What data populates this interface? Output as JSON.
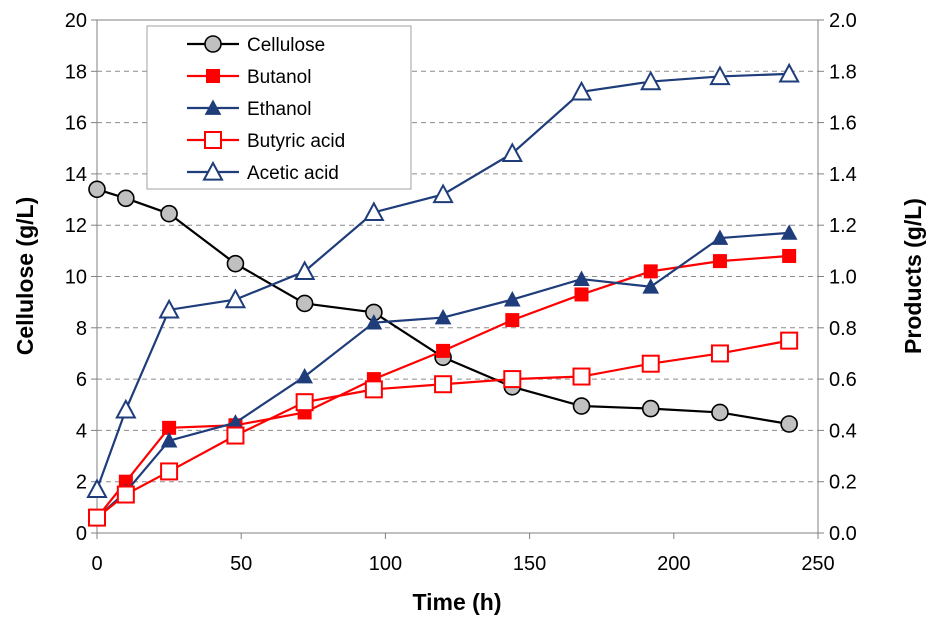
{
  "chart_data": {
    "type": "line",
    "title": "",
    "xlabel": "Time (h)",
    "ylabel": "Cellulose (g/L)",
    "y2label": "Products (g/L)",
    "xlim": [
      0,
      250
    ],
    "ylim": [
      0,
      20
    ],
    "y2lim": [
      0,
      2.0
    ],
    "xticks": [
      "0",
      "50",
      "100",
      "150",
      "200",
      "250"
    ],
    "yticks": [
      "0",
      "2",
      "4",
      "6",
      "8",
      "10",
      "12",
      "14",
      "16",
      "18",
      "20"
    ],
    "y2ticks": [
      "0.0",
      "0.2",
      "0.4",
      "0.6",
      "0.8",
      "1.0",
      "1.2",
      "1.4",
      "1.6",
      "1.8",
      "2.0"
    ],
    "grid": "horizontal dashed",
    "legend_position": "top-left",
    "series": [
      {
        "name": "Cellulose",
        "axis": "left",
        "color": "#000000",
        "marker": "circle",
        "marker_fill": "#c0c0c0",
        "x": [
          0,
          10,
          25,
          48,
          72,
          96,
          120,
          144,
          168,
          192,
          216,
          240
        ],
        "y": [
          13.4,
          13.05,
          12.45,
          10.5,
          8.95,
          8.6,
          6.85,
          5.7,
          4.95,
          4.85,
          4.7,
          4.25
        ]
      },
      {
        "name": "Butanol",
        "axis": "right",
        "color": "#ff0000",
        "marker": "square",
        "marker_fill": "#ff0000",
        "x": [
          0,
          10,
          25,
          48,
          72,
          96,
          120,
          144,
          168,
          192,
          216,
          240
        ],
        "y": [
          0.06,
          0.2,
          0.41,
          0.42,
          0.47,
          0.6,
          0.71,
          0.83,
          0.93,
          1.02,
          1.06,
          1.08
        ]
      },
      {
        "name": "Ethanol",
        "axis": "right",
        "color": "#1f3d7a",
        "marker": "triangle",
        "marker_fill": "#1f3d7a",
        "x": [
          0,
          10,
          25,
          48,
          72,
          96,
          120,
          144,
          168,
          192,
          216,
          240
        ],
        "y": [
          0.06,
          0.16,
          0.36,
          0.43,
          0.61,
          0.82,
          0.84,
          0.91,
          0.99,
          0.96,
          1.15,
          1.17
        ]
      },
      {
        "name": "Butyric acid",
        "axis": "right",
        "color": "#ff0000",
        "marker": "square",
        "marker_fill": "#ffffff",
        "x": [
          0,
          10,
          25,
          48,
          72,
          96,
          120,
          144,
          168,
          192,
          216,
          240
        ],
        "y": [
          0.06,
          0.15,
          0.24,
          0.38,
          0.51,
          0.56,
          0.58,
          0.6,
          0.61,
          0.66,
          0.7,
          0.75
        ]
      },
      {
        "name": "Acetic acid",
        "axis": "right",
        "color": "#1f3d7a",
        "marker": "triangle",
        "marker_fill": "#ffffff",
        "x": [
          0,
          10,
          25,
          48,
          72,
          96,
          120,
          144,
          168,
          192,
          216,
          240
        ],
        "y": [
          0.17,
          0.48,
          0.87,
          0.91,
          1.02,
          1.25,
          1.32,
          1.48,
          1.72,
          1.76,
          1.78,
          1.79
        ]
      }
    ]
  }
}
